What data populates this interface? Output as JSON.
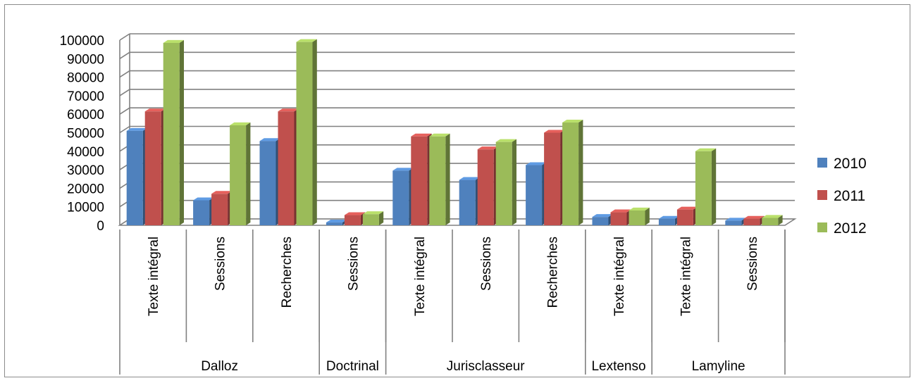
{
  "chart_data": {
    "type": "bar",
    "title": "",
    "xlabel": "",
    "ylabel": "",
    "ylim": [
      0,
      100000
    ],
    "yticks": [
      0,
      10000,
      20000,
      30000,
      40000,
      50000,
      60000,
      70000,
      80000,
      90000,
      100000
    ],
    "grid": true,
    "legend_position": "right",
    "categories": [
      "Texte intégral",
      "Sessions",
      "Recherches",
      "Sessions",
      "Texte intégral",
      "Sessions",
      "Recherches",
      "Texte intégral",
      "Texte intégral",
      "Sessions"
    ],
    "groups": [
      {
        "label": "Dalloz",
        "span": 3
      },
      {
        "label": "Doctrinal",
        "span": 1
      },
      {
        "label": "Jurisclasseur",
        "span": 3
      },
      {
        "label": "Lextenso",
        "span": 1
      },
      {
        "label": "Lamyline",
        "span": 2
      }
    ],
    "series": [
      {
        "name": "2010",
        "color": "#4f81bd",
        "values": [
          51000,
          13500,
          45500,
          1500,
          29500,
          24500,
          32500,
          4500,
          3500,
          2500
        ]
      },
      {
        "name": "2011",
        "color": "#c0504d",
        "values": [
          61500,
          17000,
          61500,
          5500,
          48000,
          41000,
          50000,
          7000,
          8500,
          3500
        ]
      },
      {
        "name": "2012",
        "color": "#9bbb59",
        "values": [
          98500,
          54000,
          99000,
          6000,
          48000,
          45000,
          55500,
          8000,
          40000,
          4000
        ]
      }
    ]
  }
}
